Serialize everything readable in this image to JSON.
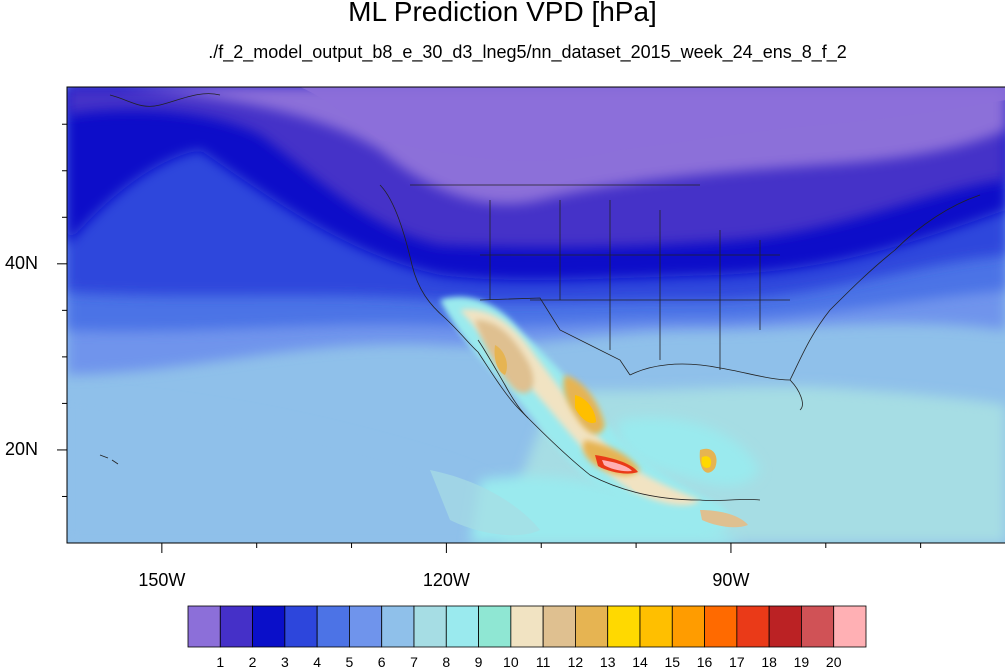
{
  "header": {
    "title": "ML Prediction VPD [hPa]",
    "subtitle": "./f_2_model_output_b8_e_30_d3_lneg5/nn_dataset_2015_week_24_ens_8_f_2"
  },
  "map": {
    "projection": "cylindrical equidistant",
    "extent": {
      "lon_min": -160,
      "lon_max": -61,
      "lat_min": 10,
      "lat_max": 59
    },
    "lat_labels": [
      {
        "lat": 40,
        "text": "40N"
      },
      {
        "lat": 20,
        "text": "20N"
      }
    ],
    "lon_labels": [
      {
        "lon": -150,
        "text": "150W"
      },
      {
        "lon": -120,
        "text": "120W"
      },
      {
        "lon": -90,
        "text": "90W"
      }
    ],
    "field": "VPD",
    "units": "hPa"
  },
  "colorbar": {
    "colors": [
      "#8c6fd9",
      "#4530c8",
      "#0a0fc9",
      "#2d46dc",
      "#4c73e6",
      "#6f94ec",
      "#8fc0ea",
      "#a6dde4",
      "#9aeaee",
      "#8fe7d3",
      "#f1e3c2",
      "#dfc090",
      "#e6b452",
      "#ffd900",
      "#ffbf00",
      "#ff9c00",
      "#ff6a00",
      "#ea3a18",
      "#bb2224",
      "#d05256",
      "#ffb0b4"
    ],
    "labels": [
      "1",
      "2",
      "3",
      "4",
      "5",
      "6",
      "7",
      "8",
      "9",
      "10",
      "11",
      "12",
      "13",
      "14",
      "15",
      "16",
      "17",
      "18",
      "19",
      "20"
    ]
  }
}
